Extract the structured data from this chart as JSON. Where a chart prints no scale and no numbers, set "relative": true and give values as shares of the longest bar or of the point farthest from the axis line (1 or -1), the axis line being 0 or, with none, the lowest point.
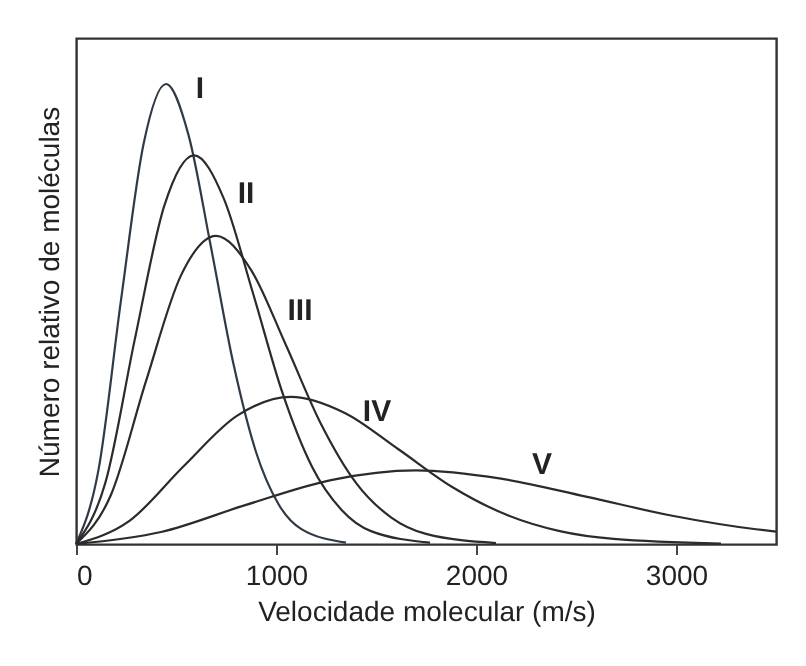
{
  "chart_data": {
    "type": "line",
    "relative": true,
    "xlabel": "Velocidade molecular (m/s)",
    "ylabel": "Número relativo de moléculas",
    "xlim": [
      0,
      3500
    ],
    "xticks": [
      0,
      1000,
      2000,
      3000
    ],
    "tick_labels": "x",
    "grid": false,
    "marker": "none",
    "line_style": "solid",
    "series": [
      {
        "name": "I",
        "color": "#2f3a48",
        "x": [
          0,
          112,
          225,
          338,
          450,
          562,
          675,
          788,
          900,
          1012,
          1125,
          1350
        ],
        "values": [
          0,
          0.16,
          0.53,
          0.87,
          1,
          0.89,
          0.645,
          0.39,
          0.2,
          0.087,
          0.033,
          0.003
        ]
      },
      {
        "name": "II",
        "color": "#2b2b2b",
        "x": [
          0,
          148,
          295,
          442,
          590,
          738,
          885,
          1032,
          1180,
          1328,
          1475,
          1770
        ],
        "values": [
          0,
          0.135,
          0.447,
          0.736,
          0.845,
          0.752,
          0.545,
          0.329,
          0.168,
          0.074,
          0.028,
          0.003
        ]
      },
      {
        "name": "III",
        "color": "#2b2b2b",
        "x": [
          0,
          175,
          350,
          525,
          700,
          875,
          1050,
          1225,
          1400,
          1575,
          1750,
          2100
        ],
        "values": [
          0,
          0.107,
          0.354,
          0.584,
          0.67,
          0.596,
          0.432,
          0.261,
          0.133,
          0.058,
          0.022,
          0.002
        ]
      },
      {
        "name": "IV",
        "color": "#2b2b2b",
        "x": [
          0,
          269,
          538,
          806,
          1075,
          1344,
          1612,
          1881,
          2150,
          2419,
          2688,
          3225
        ],
        "values": [
          0,
          0.051,
          0.169,
          0.279,
          0.32,
          0.285,
          0.206,
          0.124,
          0.064,
          0.028,
          0.011,
          0.001
        ]
      },
      {
        "name": "V",
        "color": "#2b2b2b",
        "x": [
          0,
          425,
          850,
          1275,
          1700,
          2125,
          2550,
          2975,
          3400,
          3500
        ],
        "values": [
          0,
          0.026,
          0.085,
          0.139,
          0.16,
          0.142,
          0.103,
          0.062,
          0.032,
          0.027
        ]
      }
    ]
  }
}
